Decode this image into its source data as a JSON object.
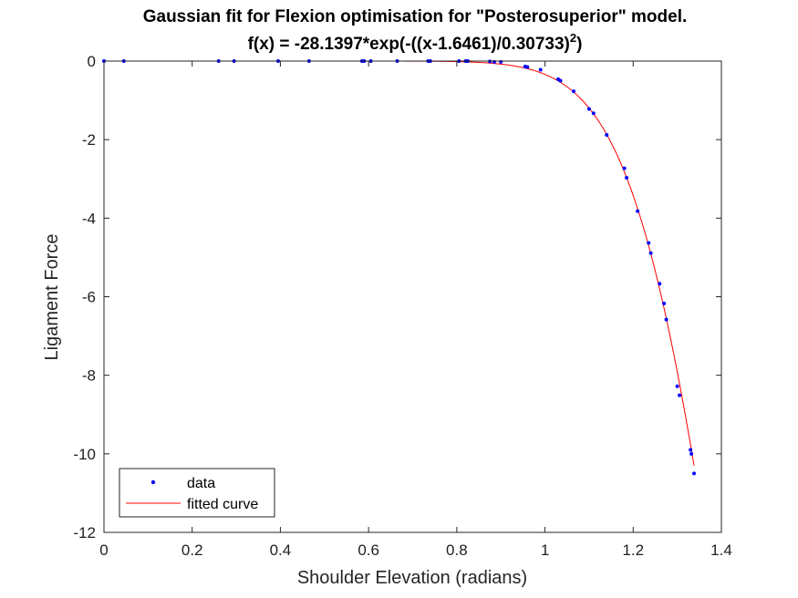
{
  "chart_data": {
    "type": "scatter",
    "title": "Gaussian fit for Flexion optimisation for \"Posterosuperior\" model.",
    "subtitle": "f(x) = -28.1397*exp(-((x-1.6461)/0.30733)",
    "subtitle_superscript": "2",
    "subtitle_tail": ")",
    "xlabel": "Shoulder Elevation (radians)",
    "ylabel": "Ligament Force",
    "xlim": [
      0,
      1.4
    ],
    "ylim": [
      -12,
      0
    ],
    "x_ticks": [
      0,
      0.2,
      0.4,
      0.6,
      0.8,
      1,
      1.2,
      1.4
    ],
    "x_tick_labels": [
      "0",
      "0.2",
      "0.4",
      "0.6",
      "0.8",
      "1",
      "1.2",
      "1.4"
    ],
    "y_ticks": [
      0,
      -2,
      -4,
      -6,
      -8,
      -10,
      -12
    ],
    "y_tick_labels": [
      "0",
      "-2",
      "-4",
      "-6",
      "-8",
      "-10",
      "-12"
    ],
    "grid": false,
    "legend_position": "bottom-left",
    "fit": {
      "a": -28.1397,
      "b": 1.6461,
      "c": 0.30733
    },
    "series": [
      {
        "name": "data",
        "kind": "points",
        "color": "#0000ff",
        "x": [
          0.0,
          0.045,
          0.26,
          0.295,
          0.395,
          0.465,
          0.585,
          0.59,
          0.605,
          0.665,
          0.735,
          0.74,
          0.805,
          0.82,
          0.825,
          0.875,
          0.885,
          0.9,
          0.955,
          0.96,
          0.99,
          1.03,
          1.035,
          1.065,
          1.1,
          1.11,
          1.14,
          1.18,
          1.185,
          1.21,
          1.235,
          1.24,
          1.26,
          1.27,
          1.275,
          1.3,
          1.305,
          1.33,
          1.332,
          1.338
        ],
        "y": [
          0.0,
          0.0,
          0.0,
          0.0,
          0.0,
          0.0,
          0.0,
          0.0,
          0.0,
          0.0,
          0.0,
          0.0,
          0.0,
          0.0,
          0.0,
          -0.01,
          -0.02,
          -0.02,
          -0.14,
          -0.15,
          -0.22,
          -0.46,
          -0.5,
          -0.77,
          -1.22,
          -1.33,
          -1.88,
          -2.73,
          -2.97,
          -3.82,
          -4.63,
          -4.89,
          -5.67,
          -6.17,
          -6.58,
          -8.28,
          -8.51,
          -9.9,
          -10.0,
          -10.5
        ]
      },
      {
        "name": "fitted curve",
        "kind": "line",
        "color": "#ff0000",
        "x_range": [
          0,
          1.338
        ]
      }
    ]
  }
}
